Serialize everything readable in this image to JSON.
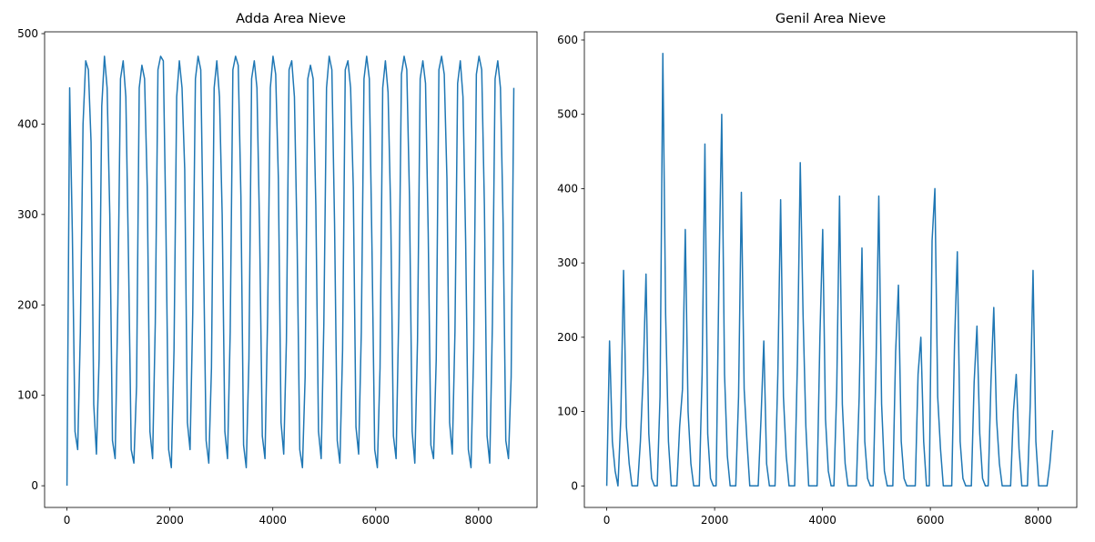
{
  "chart_data": [
    {
      "type": "line",
      "title": "Adda Area Nieve",
      "color": "#1f77b4",
      "xlim": [
        -435,
        9135
      ],
      "ylim": [
        -24,
        502
      ],
      "xticks": [
        0,
        2000,
        4000,
        6000,
        8000
      ],
      "yticks": [
        0,
        100,
        200,
        300,
        400,
        500
      ],
      "x": [
        0,
        52,
        104,
        156,
        208,
        260,
        312,
        364,
        416,
        468,
        520,
        572,
        624,
        676,
        728,
        780,
        832,
        884,
        936,
        988,
        1040,
        1092,
        1144,
        1196,
        1248,
        1300,
        1352,
        1404,
        1456,
        1508,
        1560,
        1612,
        1664,
        1716,
        1768,
        1820,
        1872,
        1924,
        1976,
        2028,
        2080,
        2132,
        2184,
        2236,
        2288,
        2340,
        2392,
        2444,
        2496,
        2548,
        2600,
        2652,
        2704,
        2756,
        2808,
        2860,
        2912,
        2964,
        3016,
        3068,
        3120,
        3172,
        3224,
        3276,
        3328,
        3380,
        3432,
        3484,
        3536,
        3588,
        3640,
        3692,
        3744,
        3796,
        3848,
        3900,
        3952,
        4004,
        4056,
        4108,
        4160,
        4212,
        4264,
        4316,
        4368,
        4420,
        4472,
        4524,
        4576,
        4628,
        4680,
        4732,
        4784,
        4836,
        4888,
        4940,
        4992,
        5044,
        5096,
        5148,
        5200,
        5252,
        5304,
        5356,
        5408,
        5460,
        5512,
        5564,
        5616,
        5668,
        5720,
        5772,
        5824,
        5876,
        5928,
        5980,
        6032,
        6084,
        6136,
        6188,
        6240,
        6292,
        6344,
        6396,
        6448,
        6500,
        6552,
        6604,
        6656,
        6708,
        6760,
        6812,
        6864,
        6916,
        6968,
        7020,
        7072,
        7124,
        7176,
        7228,
        7280,
        7332,
        7384,
        7436,
        7488,
        7540,
        7592,
        7644,
        7696,
        7748,
        7800,
        7852,
        7904,
        7956,
        8008,
        8060,
        8112,
        8164,
        8216,
        8268,
        8320,
        8372,
        8424,
        8476,
        8528,
        8580,
        8632,
        8684
      ],
      "values": [
        0,
        440,
        280,
        60,
        40,
        170,
        400,
        470,
        460,
        380,
        90,
        35,
        140,
        420,
        475,
        440,
        300,
        50,
        30,
        200,
        450,
        470,
        430,
        250,
        40,
        25,
        110,
        440,
        465,
        450,
        330,
        60,
        30,
        180,
        460,
        475,
        470,
        280,
        40,
        20,
        150,
        430,
        470,
        440,
        350,
        70,
        40,
        190,
        450,
        475,
        460,
        260,
        50,
        25,
        130,
        440,
        470,
        430,
        300,
        60,
        30,
        170,
        460,
        475,
        465,
        320,
        45,
        20,
        140,
        450,
        470,
        440,
        280,
        55,
        30,
        190,
        440,
        475,
        455,
        340,
        70,
        35,
        160,
        460,
        470,
        430,
        270,
        40,
        20,
        120,
        450,
        465,
        450,
        310,
        60,
        30,
        180,
        440,
        475,
        460,
        290,
        50,
        25,
        150,
        460,
        470,
        440,
        330,
        65,
        35,
        170,
        450,
        475,
        450,
        260,
        40,
        20,
        130,
        440,
        470,
        435,
        300,
        55,
        30,
        190,
        455,
        475,
        460,
        320,
        60,
        25,
        160,
        450,
        470,
        445,
        280,
        45,
        30,
        140,
        460,
        475,
        455,
        340,
        70,
        35,
        170,
        445,
        470,
        430,
        270,
        40,
        20,
        150,
        455,
        475,
        460,
        310,
        55,
        25,
        180,
        450,
        470,
        440,
        290,
        50,
        30,
        120,
        440
      ]
    },
    {
      "type": "line",
      "title": "Genil Area Nieve",
      "color": "#1f77b4",
      "xlim": [
        -415,
        8715
      ],
      "ylim": [
        -29,
        611
      ],
      "xticks": [
        0,
        2000,
        4000,
        6000,
        8000
      ],
      "yticks": [
        0,
        100,
        200,
        300,
        400,
        500,
        600
      ],
      "x": [
        0,
        52,
        104,
        156,
        208,
        260,
        312,
        364,
        416,
        468,
        520,
        572,
        624,
        676,
        728,
        780,
        832,
        884,
        936,
        988,
        1040,
        1092,
        1144,
        1196,
        1248,
        1300,
        1352,
        1404,
        1456,
        1508,
        1560,
        1612,
        1664,
        1716,
        1768,
        1820,
        1872,
        1924,
        1976,
        2028,
        2080,
        2132,
        2184,
        2236,
        2288,
        2340,
        2392,
        2444,
        2496,
        2548,
        2600,
        2652,
        2704,
        2756,
        2808,
        2860,
        2912,
        2964,
        3016,
        3068,
        3120,
        3172,
        3224,
        3276,
        3328,
        3380,
        3432,
        3484,
        3536,
        3588,
        3640,
        3692,
        3744,
        3796,
        3848,
        3900,
        3952,
        4004,
        4056,
        4108,
        4160,
        4212,
        4264,
        4316,
        4368,
        4420,
        4472,
        4524,
        4576,
        4628,
        4680,
        4732,
        4784,
        4836,
        4888,
        4940,
        4992,
        5044,
        5096,
        5148,
        5200,
        5252,
        5304,
        5356,
        5408,
        5460,
        5512,
        5564,
        5616,
        5668,
        5720,
        5772,
        5824,
        5876,
        5928,
        5980,
        6032,
        6084,
        6136,
        6188,
        6240,
        6292,
        6344,
        6396,
        6448,
        6500,
        6552,
        6604,
        6656,
        6708,
        6760,
        6812,
        6864,
        6916,
        6968,
        7020,
        7072,
        7124,
        7176,
        7228,
        7280,
        7332,
        7384,
        7436,
        7488,
        7540,
        7592,
        7644,
        7696,
        7748,
        7800,
        7852,
        7904,
        7956,
        8008,
        8060,
        8112,
        8164,
        8216,
        8268
      ],
      "values": [
        0,
        195,
        60,
        20,
        0,
        90,
        290,
        80,
        30,
        0,
        0,
        0,
        60,
        150,
        285,
        70,
        10,
        0,
        0,
        120,
        582,
        230,
        60,
        0,
        0,
        0,
        80,
        130,
        345,
        100,
        30,
        0,
        0,
        0,
        150,
        460,
        70,
        10,
        0,
        0,
        280,
        500,
        150,
        40,
        0,
        0,
        0,
        120,
        395,
        130,
        60,
        0,
        0,
        0,
        0,
        90,
        195,
        30,
        0,
        0,
        0,
        150,
        385,
        120,
        40,
        0,
        0,
        0,
        170,
        435,
        230,
        80,
        0,
        0,
        0,
        0,
        200,
        345,
        90,
        20,
        0,
        0,
        130,
        390,
        110,
        30,
        0,
        0,
        0,
        0,
        120,
        320,
        60,
        10,
        0,
        0,
        160,
        390,
        110,
        20,
        0,
        0,
        0,
        180,
        270,
        60,
        10,
        0,
        0,
        0,
        0,
        150,
        200,
        60,
        0,
        0,
        330,
        400,
        120,
        50,
        0,
        0,
        0,
        0,
        190,
        315,
        60,
        10,
        0,
        0,
        0,
        140,
        215,
        70,
        10,
        0,
        0,
        140,
        240,
        90,
        30,
        0,
        0,
        0,
        0,
        100,
        150,
        50,
        0,
        0,
        0,
        110,
        290,
        60,
        0,
        0,
        0,
        0,
        30,
        75
      ]
    }
  ]
}
